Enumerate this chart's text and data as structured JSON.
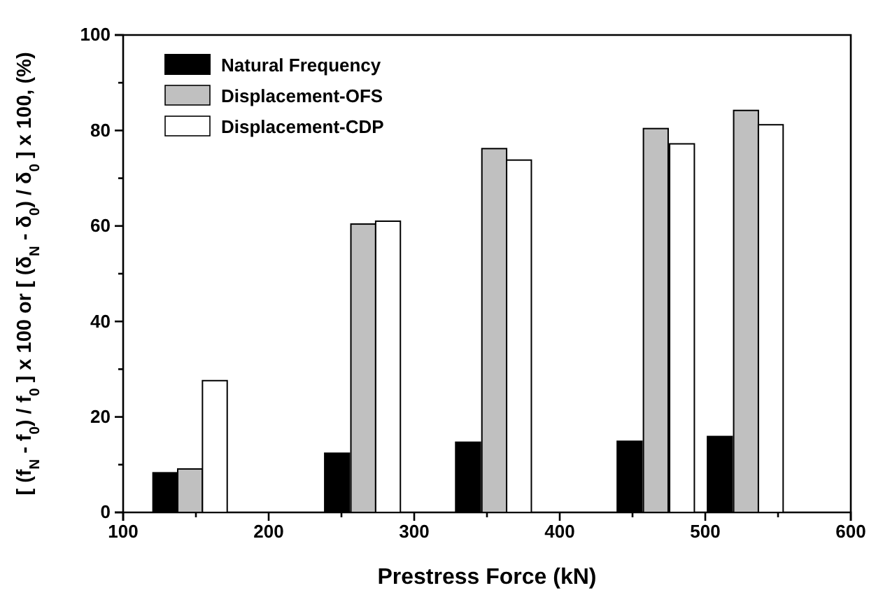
{
  "chart_data": {
    "type": "bar",
    "xlabel": "Prestress Force (kN)",
    "ylabel": "[ (f$_{N}$ - f$_{0}$) / f$_{0}$ ] x 100    or    [ (δ$_{N}$ - δ$_{0}$) / δ$_{0}$ ] x 100,  (%)",
    "xlim": [
      100,
      600
    ],
    "ylim": [
      0,
      100
    ],
    "xticks": [
      100,
      {
        "value": 150,
        "label": null
      },
      200,
      {
        "value": 250,
        "label": null
      },
      300,
      {
        "value": 350,
        "label": null
      },
      400,
      {
        "value": 450,
        "label": null
      },
      500,
      {
        "value": 550,
        "label": null
      },
      600
    ],
    "yticks": [
      0,
      {
        "value": 10,
        "label": null
      },
      20,
      {
        "value": 30,
        "label": null
      },
      40,
      {
        "value": 50,
        "label": null
      },
      60,
      {
        "value": 70,
        "label": null
      },
      80,
      {
        "value": 90,
        "label": null
      },
      100
    ],
    "legend": "top left",
    "grid": false,
    "series": [
      {
        "name": "Natural Frequency",
        "color": "#000000",
        "x": [
          129,
          247,
          337,
          448,
          510
        ],
        "values": [
          8.3,
          12.4,
          14.7,
          14.9,
          15.9
        ]
      },
      {
        "name": "Displacement-OFS",
        "color": "#c0c0c0",
        "x": [
          146,
          265,
          355,
          466,
          528
        ],
        "values": [
          9.1,
          60.4,
          76.2,
          80.4,
          84.2
        ]
      },
      {
        "name": "Displacement-CDP",
        "color": "#ffffff",
        "x": [
          163,
          282,
          372,
          484,
          545
        ],
        "values": [
          27.6,
          61.0,
          73.8,
          77.2,
          81.2
        ]
      }
    ]
  }
}
